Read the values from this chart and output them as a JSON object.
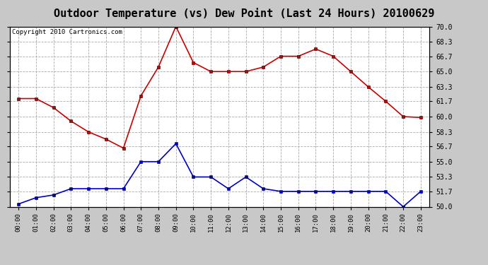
{
  "title": "Outdoor Temperature (vs) Dew Point (Last 24 Hours) 20100629",
  "copyright": "Copyright 2010 Cartronics.com",
  "x_labels": [
    "00:00",
    "01:00",
    "02:00",
    "03:00",
    "04:00",
    "05:00",
    "06:00",
    "07:00",
    "08:00",
    "09:00",
    "10:00",
    "11:00",
    "12:00",
    "13:00",
    "14:00",
    "15:00",
    "16:00",
    "17:00",
    "18:00",
    "19:00",
    "20:00",
    "21:00",
    "22:00",
    "23:00"
  ],
  "temp_data": [
    62.0,
    62.0,
    61.0,
    59.5,
    58.3,
    57.5,
    56.5,
    62.3,
    65.5,
    70.0,
    66.0,
    65.0,
    65.0,
    65.0,
    65.5,
    66.7,
    66.7,
    67.5,
    66.7,
    65.0,
    63.3,
    61.7,
    60.0,
    59.9
  ],
  "dew_data": [
    50.3,
    51.0,
    51.3,
    52.0,
    52.0,
    52.0,
    52.0,
    55.0,
    55.0,
    57.0,
    53.3,
    53.3,
    52.0,
    53.3,
    52.0,
    51.7,
    51.7,
    51.7,
    51.7,
    51.7,
    51.7,
    51.7,
    50.0,
    51.7
  ],
  "temp_color": "#cc0000",
  "dew_color": "#0000cc",
  "ylim": [
    50.0,
    70.0
  ],
  "yticks": [
    50.0,
    51.7,
    53.3,
    55.0,
    56.7,
    58.3,
    60.0,
    61.7,
    63.3,
    65.0,
    66.7,
    68.3,
    70.0
  ],
  "ytick_labels": [
    "50.0",
    "51.7",
    "53.3",
    "55.0",
    "56.7",
    "58.3",
    "60.0",
    "61.7",
    "63.3",
    "65.0",
    "66.7",
    "68.3",
    "70.0"
  ],
  "background_color": "#c8c8c8",
  "plot_bg_color": "#ffffff",
  "grid_color": "#aaaaaa",
  "title_fontsize": 11,
  "copyright_fontsize": 6.5
}
